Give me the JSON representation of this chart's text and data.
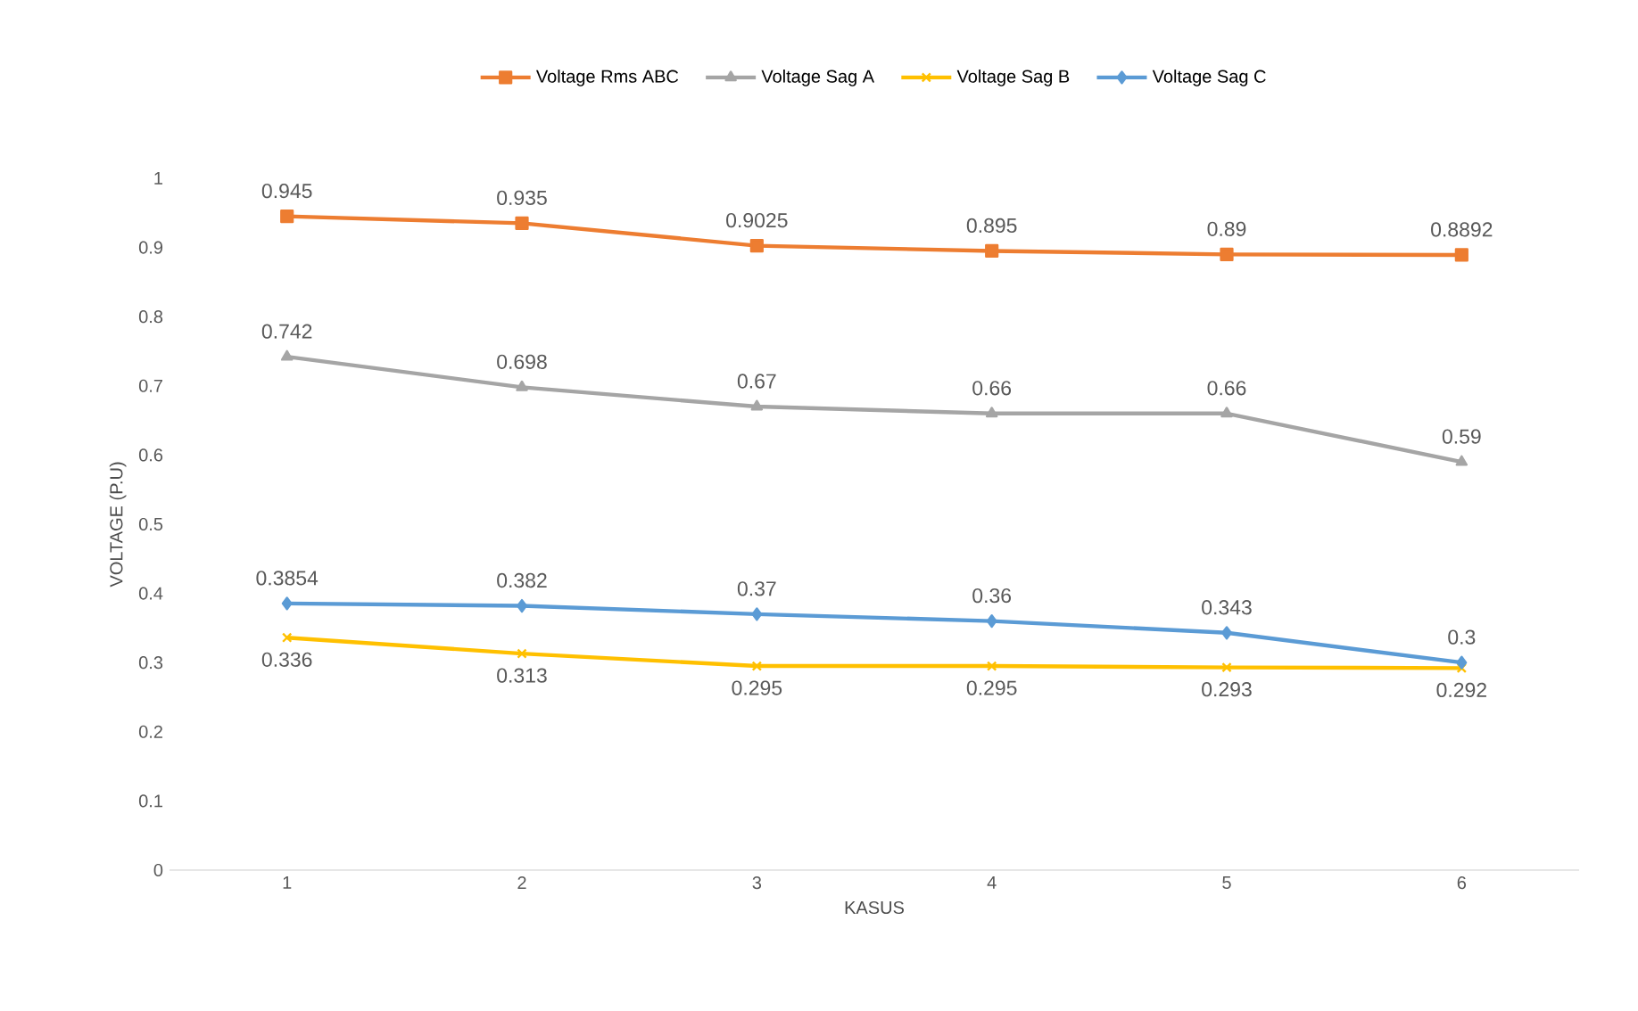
{
  "chart_data": {
    "type": "line",
    "xlabel": "KASUS",
    "ylabel": "VOLTAGE (P.U)",
    "categories": [
      "1",
      "2",
      "3",
      "4",
      "5",
      "6"
    ],
    "series": [
      {
        "name": "Voltage Rms ABC",
        "color": "#ed7d31",
        "marker": "square",
        "values": [
          0.945,
          0.935,
          0.9025,
          0.895,
          0.89,
          0.8892
        ]
      },
      {
        "name": "Voltage Sag A",
        "color": "#a5a5a5",
        "marker": "triangle",
        "values": [
          0.742,
          0.698,
          0.67,
          0.66,
          0.66,
          0.59
        ]
      },
      {
        "name": "Voltage Sag B",
        "color": "#ffc000",
        "marker": "cross",
        "values": [
          0.336,
          0.313,
          0.295,
          0.295,
          0.293,
          0.292
        ]
      },
      {
        "name": "Voltage Sag C",
        "color": "#5b9bd5",
        "marker": "diamond",
        "values": [
          0.3854,
          0.382,
          0.37,
          0.36,
          0.343,
          0.3
        ]
      }
    ],
    "ylim": [
      0,
      1
    ],
    "yticks": [
      0,
      0.1,
      0.2,
      0.3,
      0.4,
      0.5,
      0.6,
      0.7,
      0.8,
      0.9,
      1
    ],
    "grid": false,
    "legend": "top",
    "data_labels": true,
    "line_style": "solid"
  }
}
